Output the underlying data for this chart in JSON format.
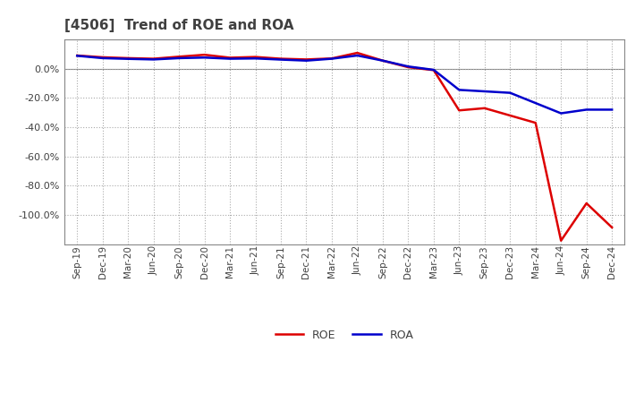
{
  "title": "[4506]  Trend of ROE and ROA",
  "x_labels": [
    "Sep-19",
    "Dec-19",
    "Mar-20",
    "Jun-20",
    "Sep-20",
    "Dec-20",
    "Mar-21",
    "Jun-21",
    "Sep-21",
    "Dec-21",
    "Mar-22",
    "Jun-22",
    "Sep-22",
    "Dec-22",
    "Mar-23",
    "Jun-23",
    "Sep-23",
    "Dec-23",
    "Mar-24",
    "Jun-24",
    "Sep-24",
    "Dec-24"
  ],
  "roe": [
    0.09,
    0.078,
    0.072,
    0.068,
    0.082,
    0.095,
    0.075,
    0.08,
    0.068,
    0.063,
    0.07,
    0.108,
    0.055,
    0.01,
    -0.01,
    -0.285,
    -0.27,
    -0.32,
    -0.37,
    -1.175,
    -0.92,
    -1.085
  ],
  "roa": [
    0.088,
    0.072,
    0.067,
    0.063,
    0.072,
    0.076,
    0.068,
    0.07,
    0.062,
    0.055,
    0.068,
    0.09,
    0.055,
    0.015,
    -0.008,
    -0.145,
    -0.155,
    -0.165,
    -0.235,
    -0.305,
    -0.28,
    -0.28
  ],
  "roe_color": "#dd0000",
  "roa_color": "#0000cc",
  "bg_color": "#ffffff",
  "plot_bg_color": "#ffffff",
  "grid_color": "#aaaaaa",
  "title_color": "#404040",
  "tick_color": "#404040",
  "ylim": [
    -1.2,
    0.2
  ],
  "yticks": [
    0.0,
    -0.2,
    -0.4,
    -0.6,
    -0.8,
    -1.0
  ],
  "line_width": 1.8
}
